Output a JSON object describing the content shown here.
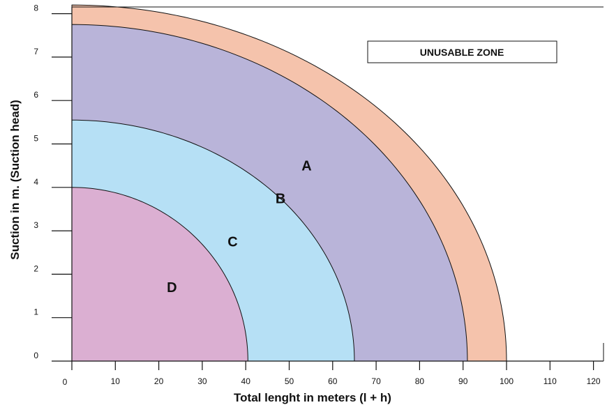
{
  "chart_data": {
    "type": "area",
    "xlabel": "Total lenght in meters (l + h)",
    "ylabel": "Suction in m. (Suction head)",
    "x_ticks": [
      "10",
      "20",
      "30",
      "40",
      "50",
      "60",
      "70",
      "80",
      "90",
      "100",
      "110",
      "120"
    ],
    "x_origin_label": "0",
    "y_ticks": [
      "0",
      "1",
      "2",
      "3",
      "4",
      "5",
      "6",
      "7",
      "8"
    ],
    "xlim": [
      0,
      122
    ],
    "ylim": [
      0,
      8.2
    ],
    "grid": false,
    "legend_box": "UNUSABLE ZONE",
    "zones": [
      {
        "label": "A",
        "color": "#f5c3ac",
        "x_intercept": 100,
        "y_intercept": 8.2,
        "label_at": [
          54,
          4.5
        ]
      },
      {
        "label": "B",
        "color": "#b9b4d9",
        "x_intercept": 91,
        "y_intercept": 7.75,
        "label_at": [
          48,
          3.75
        ]
      },
      {
        "label": "C",
        "color": "#b6e0f5",
        "x_intercept": 65,
        "y_intercept": 5.55,
        "label_at": [
          37,
          2.75
        ]
      },
      {
        "label": "D",
        "color": "#dbafd2",
        "x_intercept": 40.5,
        "y_intercept": 4.0,
        "label_at": [
          23,
          1.7
        ]
      }
    ]
  }
}
